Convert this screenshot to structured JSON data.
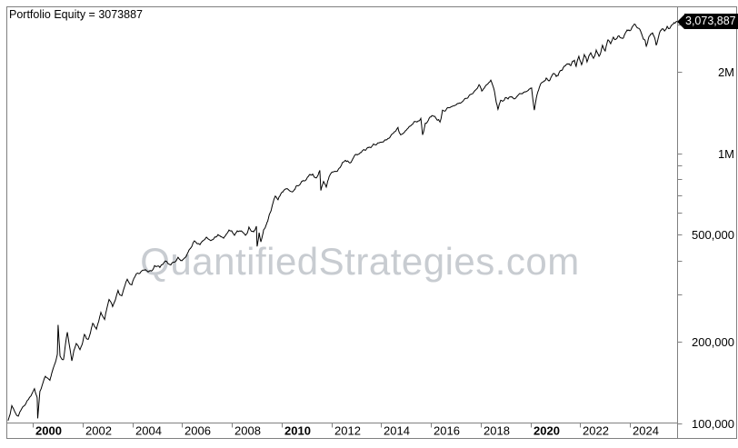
{
  "watermark": "QuantifiedStrategies.com",
  "last_value_label": "3,073,887",
  "colors": {
    "line": "#000000",
    "axis": "#808080",
    "text": "#000000",
    "watermark": "#c8ccd1",
    "tag_bg": "#000000",
    "tag_text": "#ffffff",
    "background": "#ffffff"
  },
  "chart_data": {
    "type": "line",
    "title": "Portfolio Equity = 3073887",
    "xlabel": "",
    "ylabel": "",
    "grid": "off",
    "legend": "none",
    "final_value": 3073887,
    "x_axis": {
      "unit": "year",
      "range": [
        1998.95,
        2025.97
      ],
      "ticks": [
        {
          "year": 2000,
          "label": "2000",
          "bold": true
        },
        {
          "year": 2002,
          "label": "2002",
          "bold": false
        },
        {
          "year": 2004,
          "label": "2004",
          "bold": false
        },
        {
          "year": 2006,
          "label": "2006",
          "bold": false
        },
        {
          "year": 2008,
          "label": "2008",
          "bold": false
        },
        {
          "year": 2010,
          "label": "2010",
          "bold": true
        },
        {
          "year": 2012,
          "label": "2012",
          "bold": false
        },
        {
          "year": 2014,
          "label": "2014",
          "bold": false
        },
        {
          "year": 2016,
          "label": "2016",
          "bold": false
        },
        {
          "year": 2018,
          "label": "2018",
          "bold": false
        },
        {
          "year": 2020,
          "label": "2020",
          "bold": true
        },
        {
          "year": 2022,
          "label": "2022",
          "bold": false
        },
        {
          "year": 2024,
          "label": "2024",
          "bold": false
        }
      ]
    },
    "y_axis": {
      "scale": "log",
      "range": [
        100000,
        3500000
      ],
      "ticks": [
        {
          "value": 100000,
          "label": "100,000"
        },
        {
          "value": 200000,
          "label": "200,000"
        },
        {
          "value": 300000,
          "label": ""
        },
        {
          "value": 400000,
          "label": ""
        },
        {
          "value": 500000,
          "label": "500,000"
        },
        {
          "value": 600000,
          "label": ""
        },
        {
          "value": 700000,
          "label": ""
        },
        {
          "value": 800000,
          "label": ""
        },
        {
          "value": 900000,
          "label": ""
        },
        {
          "value": 1000000,
          "label": "1M"
        },
        {
          "value": 2000000,
          "label": "2M"
        },
        {
          "value": 3000000,
          "label": ""
        }
      ]
    },
    "series": [
      {
        "name": "Portfolio Equity",
        "points": [
          [
            1999.01,
            102000
          ],
          [
            1999.16,
            116000
          ],
          [
            1999.42,
            106000
          ],
          [
            1999.67,
            116000
          ],
          [
            1999.89,
            125000
          ],
          [
            2000.07,
            134000
          ],
          [
            2000.18,
            124000
          ],
          [
            2000.2,
            104000
          ],
          [
            2000.29,
            131000
          ],
          [
            2000.51,
            149000
          ],
          [
            2000.69,
            144000
          ],
          [
            2000.88,
            165000
          ],
          [
            2000.99,
            180000
          ],
          [
            2001.02,
            231000
          ],
          [
            2001.1,
            177000
          ],
          [
            2001.24,
            172000
          ],
          [
            2001.39,
            217000
          ],
          [
            2001.57,
            170000
          ],
          [
            2001.75,
            197000
          ],
          [
            2001.9,
            187000
          ],
          [
            2002.08,
            213000
          ],
          [
            2002.23,
            204000
          ],
          [
            2002.41,
            234000
          ],
          [
            2002.56,
            223000
          ],
          [
            2002.74,
            257000
          ],
          [
            2002.89,
            242000
          ],
          [
            2003.07,
            287000
          ],
          [
            2003.21,
            270000
          ],
          [
            2003.43,
            310000
          ],
          [
            2003.58,
            296000
          ],
          [
            2003.8,
            341000
          ],
          [
            2003.98,
            325000
          ],
          [
            2004.16,
            357000
          ],
          [
            2004.42,
            368000
          ],
          [
            2004.64,
            363000
          ],
          [
            2004.9,
            383000
          ],
          [
            2005.11,
            377000
          ],
          [
            2005.33,
            398000
          ],
          [
            2005.55,
            385000
          ],
          [
            2005.84,
            411000
          ],
          [
            2006.06,
            405000
          ],
          [
            2006.28,
            437000
          ],
          [
            2006.5,
            473000
          ],
          [
            2006.72,
            458000
          ],
          [
            2006.98,
            488000
          ],
          [
            2007.2,
            477000
          ],
          [
            2007.45,
            499000
          ],
          [
            2007.67,
            484000
          ],
          [
            2007.89,
            519000
          ],
          [
            2008.11,
            496000
          ],
          [
            2008.33,
            515000
          ],
          [
            2008.55,
            496000
          ],
          [
            2008.69,
            532000
          ],
          [
            2008.88,
            511000
          ],
          [
            2008.99,
            536000
          ],
          [
            2009.02,
            451000
          ],
          [
            2009.1,
            507000
          ],
          [
            2009.17,
            469000
          ],
          [
            2009.28,
            519000
          ],
          [
            2009.39,
            544000
          ],
          [
            2009.5,
            588000
          ],
          [
            2009.64,
            646000
          ],
          [
            2009.75,
            693000
          ],
          [
            2009.86,
            672000
          ],
          [
            2010.01,
            715000
          ],
          [
            2010.19,
            738000
          ],
          [
            2010.37,
            721000
          ],
          [
            2010.59,
            755000
          ],
          [
            2010.81,
            785000
          ],
          [
            2011.03,
            810000
          ],
          [
            2011.25,
            836000
          ],
          [
            2011.4,
            810000
          ],
          [
            2011.54,
            863000
          ],
          [
            2011.58,
            727000
          ],
          [
            2011.69,
            785000
          ],
          [
            2011.8,
            749000
          ],
          [
            2011.91,
            816000
          ],
          [
            2012.13,
            856000
          ],
          [
            2012.35,
            883000
          ],
          [
            2012.57,
            940000
          ],
          [
            2012.75,
            920000
          ],
          [
            2012.93,
            978000
          ],
          [
            2013.15,
            1000000
          ],
          [
            2013.37,
            1024000
          ],
          [
            2013.59,
            1048000
          ],
          [
            2013.81,
            1073000
          ],
          [
            2014.03,
            1098000
          ],
          [
            2014.28,
            1133000
          ],
          [
            2014.5,
            1187000
          ],
          [
            2014.68,
            1244000
          ],
          [
            2014.79,
            1169000
          ],
          [
            2015.01,
            1215000
          ],
          [
            2015.23,
            1273000
          ],
          [
            2015.45,
            1304000
          ],
          [
            2015.6,
            1345000
          ],
          [
            2015.67,
            1169000
          ],
          [
            2015.78,
            1292000
          ],
          [
            2015.93,
            1345000
          ],
          [
            2016.07,
            1377000
          ],
          [
            2016.26,
            1324000
          ],
          [
            2016.37,
            1304000
          ],
          [
            2016.47,
            1443000
          ],
          [
            2016.69,
            1476000
          ],
          [
            2016.95,
            1499000
          ],
          [
            2017.21,
            1535000
          ],
          [
            2017.42,
            1595000
          ],
          [
            2017.68,
            1659000
          ],
          [
            2017.94,
            1793000
          ],
          [
            2018.05,
            1698000
          ],
          [
            2018.19,
            1770000
          ],
          [
            2018.41,
            1864000
          ],
          [
            2018.56,
            1690000
          ],
          [
            2018.7,
            1453000
          ],
          [
            2018.81,
            1570000
          ],
          [
            2019.0,
            1607000
          ],
          [
            2019.21,
            1618000
          ],
          [
            2019.4,
            1595000
          ],
          [
            2019.62,
            1659000
          ],
          [
            2019.84,
            1690000
          ],
          [
            2020.05,
            1744000
          ],
          [
            2020.16,
            1443000
          ],
          [
            2020.27,
            1647000
          ],
          [
            2020.38,
            1770000
          ],
          [
            2020.53,
            1838000
          ],
          [
            2020.64,
            1897000
          ],
          [
            2020.75,
            1851000
          ],
          [
            2020.89,
            1956000
          ],
          [
            2021.04,
            1924000
          ],
          [
            2021.19,
            2015000
          ],
          [
            2021.33,
            2078000
          ],
          [
            2021.48,
            2143000
          ],
          [
            2021.63,
            2110000
          ],
          [
            2021.77,
            2209000
          ],
          [
            2021.84,
            2095000
          ],
          [
            2021.95,
            2285000
          ],
          [
            2022.06,
            2126000
          ],
          [
            2022.17,
            2317000
          ],
          [
            2022.28,
            2178000
          ],
          [
            2022.43,
            2354000
          ],
          [
            2022.54,
            2247000
          ],
          [
            2022.65,
            2408000
          ],
          [
            2022.76,
            2285000
          ],
          [
            2022.9,
            2510000
          ],
          [
            2023.01,
            2390000
          ],
          [
            2023.12,
            2628000
          ],
          [
            2023.23,
            2544000
          ],
          [
            2023.34,
            2690000
          ],
          [
            2023.45,
            2645000
          ],
          [
            2023.56,
            2720000
          ],
          [
            2023.67,
            2668000
          ],
          [
            2023.82,
            2790000
          ],
          [
            2023.96,
            2859000
          ],
          [
            2024.11,
            2950000
          ],
          [
            2024.22,
            2995000
          ],
          [
            2024.33,
            2903000
          ],
          [
            2024.47,
            2770000
          ],
          [
            2024.62,
            2606000
          ],
          [
            2024.66,
            2490000
          ],
          [
            2024.77,
            2705000
          ],
          [
            2024.91,
            2790000
          ],
          [
            2024.99,
            2690000
          ],
          [
            2025.06,
            2510000
          ],
          [
            2025.17,
            2740000
          ],
          [
            2025.28,
            2880000
          ],
          [
            2025.39,
            2835000
          ],
          [
            2025.5,
            2950000
          ],
          [
            2025.61,
            2903000
          ],
          [
            2025.72,
            2995000
          ],
          [
            2025.83,
            3040000
          ],
          [
            2025.94,
            3073887
          ]
        ]
      }
    ]
  }
}
